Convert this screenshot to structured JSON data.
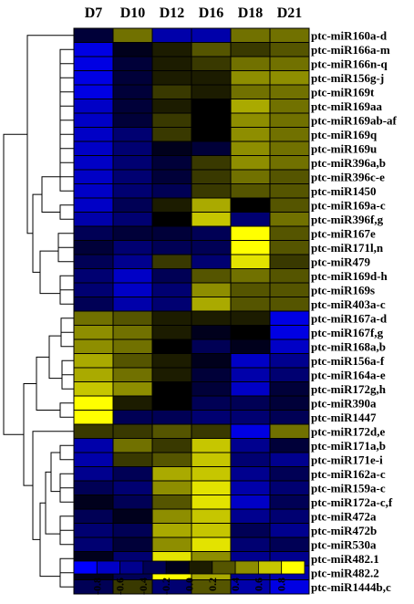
{
  "chart_data": {
    "type": "heatmap",
    "columns": [
      "D7",
      "D10",
      "D12",
      "D16",
      "D18",
      "D21"
    ],
    "rows": [
      "ptc-miR160a-d",
      "ptc-miR166a-m",
      "ptc-miR166n-q",
      "ptc-miR156g-j",
      "ptc-miR169t",
      "ptc-miR169aa",
      "ptc-miR169ab-af",
      "ptc-miR169q",
      "ptc-miR169u",
      "ptc-miR396a,b",
      "ptc-miR396c-e",
      "ptc-miR1450",
      "ptc-miR169a-c",
      "ptc-miR396f,g",
      "ptc-miR167e",
      "ptc-miR171l,n",
      "ptc-miR479",
      "ptc-miR169d-h",
      "ptc-miR169s",
      "ptc-miR403a-c",
      "ptc-miR167a-d",
      "ptc-miR167f,g",
      "ptc-miR168a,b",
      "ptc-miR156a-f",
      "ptc-miR164a-e",
      "ptc-miR172g,h",
      "ptc-miR390a",
      "ptc-miR1447",
      "ptc-miR172d,e",
      "ptc-miR171a,b",
      "ptc-miR171e-i",
      "ptc-miR162a-c",
      "ptc-miR159a-c",
      "ptc-miR172a-c,f",
      "ptc-miR472a",
      "ptc-miR472b",
      "ptc-miR530a",
      "ptc-miR482.1",
      "ptc-miR482.2",
      "ptc-miR1444b,c"
    ],
    "values": [
      [
        -0.2,
        0.4,
        -0.6,
        -0.6,
        0.4,
        0.4
      ],
      [
        -0.8,
        -0.1,
        0.1,
        0.3,
        0.2,
        0.3
      ],
      [
        -0.8,
        -0.2,
        0.1,
        0.2,
        0.4,
        0.4
      ],
      [
        -0.8,
        -0.2,
        0.1,
        0.1,
        0.5,
        0.5
      ],
      [
        -0.8,
        -0.2,
        0.2,
        0.1,
        0.4,
        0.4
      ],
      [
        -0.7,
        -0.2,
        0.1,
        0.0,
        0.6,
        0.4
      ],
      [
        -0.7,
        -0.2,
        0.2,
        0.0,
        0.5,
        0.4
      ],
      [
        -0.7,
        -0.4,
        0.2,
        0.0,
        0.5,
        0.4
      ],
      [
        -0.7,
        -0.4,
        -0.1,
        -0.2,
        0.5,
        0.4
      ],
      [
        -0.7,
        -0.4,
        -0.2,
        0.2,
        0.5,
        0.4
      ],
      [
        -0.7,
        -0.4,
        -0.2,
        0.2,
        0.4,
        0.3
      ],
      [
        -0.7,
        -0.4,
        -0.3,
        0.2,
        0.3,
        0.3
      ],
      [
        -0.7,
        -0.3,
        0.1,
        0.6,
        0.0,
        0.3
      ],
      [
        -0.6,
        -0.4,
        0.0,
        0.7,
        -0.4,
        0.4
      ],
      [
        -0.3,
        -0.2,
        -0.2,
        -0.3,
        0.9,
        0.3
      ],
      [
        -0.2,
        -0.4,
        -0.3,
        -0.3,
        0.9,
        0.3
      ],
      [
        -0.3,
        -0.5,
        0.2,
        -0.4,
        0.8,
        0.2
      ],
      [
        -0.4,
        -0.7,
        -0.3,
        0.3,
        0.4,
        0.3
      ],
      [
        -0.4,
        -0.7,
        -0.4,
        0.5,
        0.3,
        0.3
      ],
      [
        -0.3,
        -0.6,
        -0.4,
        0.6,
        0.3,
        0.3
      ],
      [
        0.4,
        0.3,
        0.1,
        0.1,
        0.1,
        -0.8
      ],
      [
        0.5,
        0.4,
        0.1,
        -0.1,
        0.0,
        -0.8
      ],
      [
        0.5,
        0.4,
        0.0,
        -0.3,
        -0.1,
        -0.7
      ],
      [
        0.6,
        0.3,
        0.1,
        -0.1,
        -0.7,
        -0.5
      ],
      [
        0.6,
        0.4,
        0.1,
        -0.2,
        -0.6,
        -0.4
      ],
      [
        0.7,
        0.5,
        0.0,
        -0.2,
        -0.7,
        -0.2
      ],
      [
        0.9,
        0.1,
        0.0,
        -0.3,
        -0.3,
        -0.2
      ],
      [
        0.9,
        -0.3,
        -0.3,
        -0.4,
        -0.4,
        -0.3
      ],
      [
        0.2,
        0.2,
        0.3,
        0.2,
        -0.8,
        0.4
      ],
      [
        -0.6,
        0.4,
        0.2,
        0.7,
        -0.5,
        -0.2
      ],
      [
        -0.6,
        0.2,
        0.3,
        0.7,
        -0.4,
        -0.5
      ],
      [
        -0.5,
        -0.3,
        0.6,
        0.7,
        -0.5,
        -0.3
      ],
      [
        -0.3,
        -0.4,
        0.5,
        0.8,
        -0.6,
        -0.4
      ],
      [
        -0.1,
        -0.3,
        0.3,
        0.8,
        -0.7,
        -0.3
      ],
      [
        -0.3,
        -0.1,
        0.5,
        0.7,
        -0.5,
        -0.4
      ],
      [
        -0.4,
        -0.3,
        0.6,
        0.7,
        -0.3,
        -0.5
      ],
      [
        -0.4,
        -0.2,
        0.5,
        0.8,
        -0.4,
        -0.3
      ],
      [
        -0.1,
        -0.4,
        0.8,
        0.5,
        -0.5,
        -0.5
      ],
      [
        -0.1,
        -0.3,
        0.9,
        0.6,
        -0.5,
        -0.6
      ],
      [
        -0.3,
        0.2,
        -0.4,
        0.3,
        -0.6,
        -0.8
      ]
    ],
    "color_scale": {
      "min": -0.9,
      "max": 0.9,
      "low_color": "#0000ff",
      "mid_color": "#000000",
      "high_color": "#ffff00"
    },
    "colorbar_ticks": [
      "-0.8",
      "-0.6",
      "-0.4",
      "-0.2",
      "0.0",
      "0.2",
      "0.4",
      "0.6",
      "0.8"
    ],
    "colorbar_values": [
      -0.9,
      -0.7,
      -0.5,
      -0.3,
      -0.1,
      0.1,
      0.3,
      0.5,
      0.7,
      0.9
    ],
    "dendrogram": "left",
    "legend_position": "bottom"
  }
}
